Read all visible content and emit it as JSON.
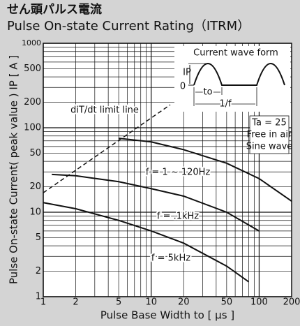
{
  "chart_data": {
    "type": "line",
    "title": "せん頭パルス電流",
    "subtitle": "Pulse On-state Current Rating（ITRM）",
    "x_label": "Pulse Base Width  to [ μs ]",
    "y_label": "Pulse On-state Current( peak value ) IP [ A ]",
    "xscale": "log",
    "yscale": "log",
    "xlim": [
      1,
      200
    ],
    "ylim": [
      1,
      1000
    ],
    "xticks": [
      1,
      2,
      5,
      10,
      20,
      50,
      100,
      200
    ],
    "yticks": [
      1,
      2,
      5,
      10,
      20,
      50,
      100,
      200,
      500,
      1000
    ],
    "xgrid": [
      1,
      2,
      3,
      4,
      5,
      6,
      7,
      8,
      9,
      10,
      20,
      30,
      40,
      50,
      60,
      70,
      80,
      90,
      100,
      200
    ],
    "ygrid": [
      1,
      2,
      3,
      4,
      5,
      6,
      7,
      8,
      9,
      10,
      20,
      30,
      40,
      50,
      60,
      70,
      80,
      90,
      100,
      200,
      300,
      400,
      500,
      600,
      700,
      800,
      900,
      1000
    ],
    "series": [
      {
        "name": "f = 1 ~ 120Hz",
        "color": "#111111",
        "dashed": false,
        "x": [
          5,
          10,
          20,
          50,
          100,
          200
        ],
        "values": [
          75,
          68,
          55,
          38,
          25,
          13.5
        ]
      },
      {
        "name": "f = .1kHz",
        "color": "#111111",
        "dashed": false,
        "x": [
          1.2,
          2,
          5,
          10,
          20,
          50,
          100
        ],
        "values": [
          28,
          27,
          23,
          19,
          15.5,
          10,
          6
        ]
      },
      {
        "name": "f = 5kHz",
        "color": "#111111",
        "dashed": false,
        "x": [
          1,
          2,
          5,
          10,
          20,
          50,
          80
        ],
        "values": [
          13,
          11,
          8,
          6,
          4.3,
          2.3,
          1.5
        ]
      },
      {
        "name": "diT/dt limit line",
        "color": "#111111",
        "dashed": true,
        "x": [
          1,
          15
        ],
        "values": [
          17,
          187
        ]
      }
    ],
    "annotations": [
      "Ta = 25",
      "Free in air",
      "Sine wave"
    ],
    "inset": {
      "title": "Current wave form",
      "peak": "IP",
      "zero": "0",
      "width": "to",
      "period": "1/f"
    }
  }
}
